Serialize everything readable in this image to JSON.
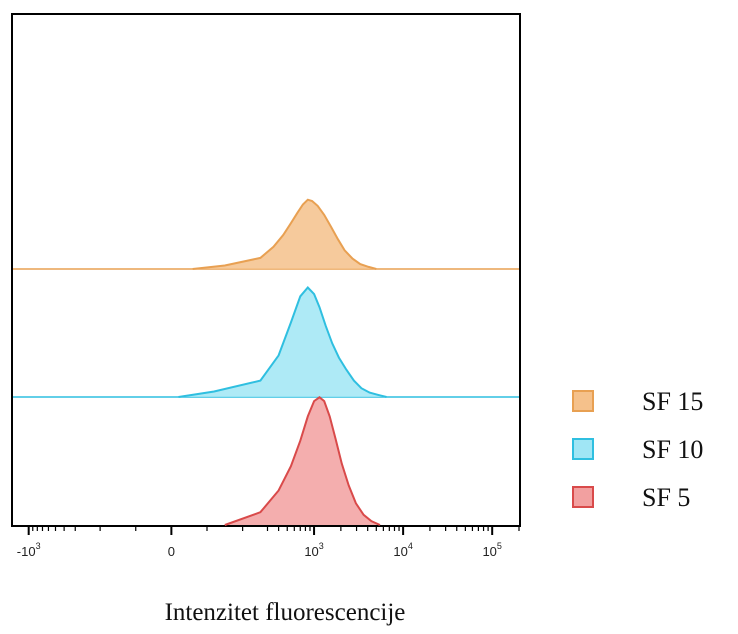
{
  "chart_data": {
    "type": "area",
    "chart_subtype": "offset flow cytometry histogram overlay",
    "x_scale": "biexponential",
    "xlabel": "Intenzitet fluorescencije",
    "ylabel": "",
    "title": "",
    "xlim": [
      -1500,
      200000
    ],
    "x_ticks": [
      {
        "value": -1000,
        "base": "-10",
        "exp": "3"
      },
      {
        "value": 0,
        "base": "0",
        "exp": ""
      },
      {
        "value": 1000,
        "base": "10",
        "exp": "3"
      },
      {
        "value": 10000,
        "base": "10",
        "exp": "4"
      },
      {
        "value": 100000,
        "base": "10",
        "exp": "5"
      }
    ],
    "legend_position": "right",
    "series": [
      {
        "name": "SF 15",
        "fill": "#f5c18b",
        "stroke": "#e8a052",
        "peak_x": 800,
        "relative_height": 0.95,
        "x": [
          60,
          150,
          250,
          350,
          450,
          550,
          650,
          750,
          850,
          950,
          1100,
          1300,
          1550,
          1850,
          2200,
          2700,
          3300,
          4100,
          5000
        ],
        "y": [
          0.0,
          0.05,
          0.16,
          0.32,
          0.49,
          0.66,
          0.81,
          0.93,
          1.0,
          0.98,
          0.91,
          0.78,
          0.61,
          0.43,
          0.27,
          0.15,
          0.07,
          0.03,
          0.0
        ]
      },
      {
        "name": "SF 10",
        "fill": "#a0e6f5",
        "stroke": "#2fbfe0",
        "peak_x": 850,
        "relative_height": 1.5,
        "x": [
          20,
          120,
          250,
          400,
          550,
          700,
          850,
          1000,
          1150,
          1350,
          1600,
          1900,
          2300,
          2800,
          3400,
          4200,
          5200,
          6500
        ],
        "y": [
          0.0,
          0.05,
          0.15,
          0.38,
          0.68,
          0.92,
          1.0,
          0.94,
          0.82,
          0.65,
          0.49,
          0.36,
          0.25,
          0.15,
          0.08,
          0.04,
          0.02,
          0.0
        ]
      },
      {
        "name": "SF 5",
        "fill": "#f2a0a0",
        "stroke": "#d94a4a",
        "peak_x": 1200,
        "relative_height": 1.75,
        "x": [
          150,
          250,
          400,
          550,
          700,
          850,
          1000,
          1150,
          1300,
          1500,
          1750,
          2050,
          2450,
          2950,
          3600,
          4400,
          5500
        ],
        "y": [
          0.0,
          0.1,
          0.27,
          0.46,
          0.66,
          0.85,
          0.97,
          1.0,
          0.97,
          0.85,
          0.67,
          0.48,
          0.31,
          0.17,
          0.08,
          0.03,
          0.0
        ]
      }
    ]
  }
}
